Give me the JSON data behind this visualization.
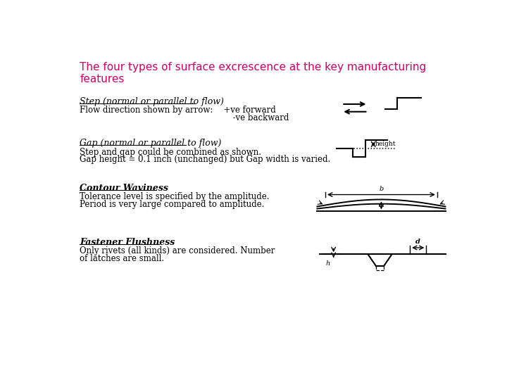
{
  "title": "The four types of surface excrescence at the key manufacturing\nfeatures",
  "title_color": "#cc0066",
  "bg_color": "#ffffff",
  "section1_heading": "Step (normal or parallel to flow)",
  "section1_line1": "Flow direction shown by arrow:    +ve forward",
  "section1_line2": "                                                          -ve backward",
  "section2_heading": "Gap (normal or parallel to flow)",
  "section2_line1": "Step and gap could be combined as shown.",
  "section2_line2": "Gap height = 0.1 inch (unchanged) but Gap width is varied.",
  "section3_heading": "Contour Waviness",
  "section3_line1": "Tolerance level is specified by the amplitude.",
  "section3_line2": "Period is very large compared to amplitude.",
  "section4_heading": "Fastener Flushness",
  "section4_line1": "Only rivets (all kinds) are considered. Number",
  "section4_line2": "of latches are small."
}
